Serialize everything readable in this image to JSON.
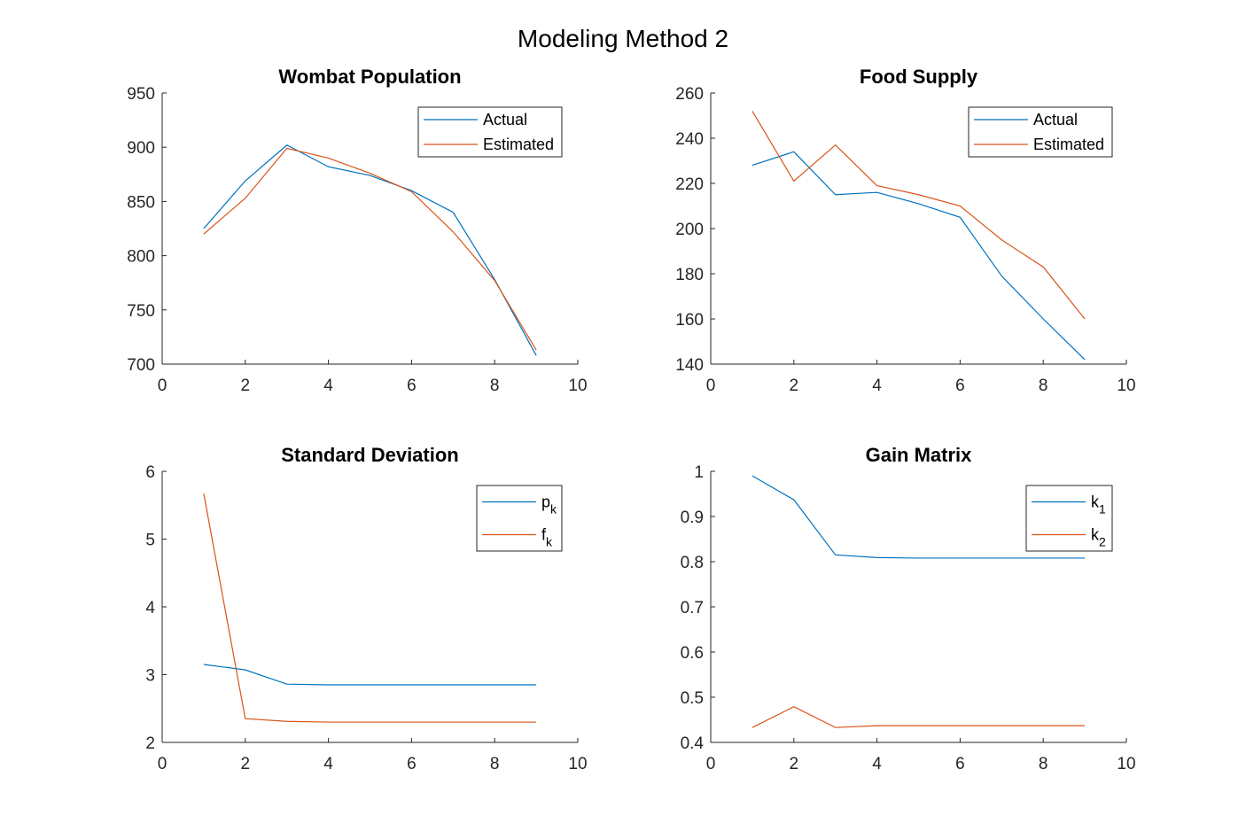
{
  "figure": {
    "title": "Modeling Method 2"
  },
  "colors": {
    "series1": "#0072BD",
    "series2": "#D95319",
    "axis": "#262626"
  },
  "chart_data": [
    {
      "type": "line",
      "title": "Wombat Population",
      "xlim": [
        0,
        10
      ],
      "ylim": [
        700,
        950
      ],
      "xticks": [
        0,
        2,
        4,
        6,
        8,
        10
      ],
      "yticks": [
        700,
        750,
        800,
        850,
        900,
        950
      ],
      "x": [
        1,
        2,
        3,
        4,
        5,
        6,
        7,
        8,
        9
      ],
      "legend_position": "top-right",
      "series": [
        {
          "name": "Actual",
          "values": [
            825,
            869,
            902,
            882,
            874,
            860,
            840,
            778,
            708
          ]
        },
        {
          "name": "Estimated",
          "values": [
            820,
            853,
            899,
            890,
            876,
            859,
            822,
            777,
            713
          ]
        }
      ]
    },
    {
      "type": "line",
      "title": "Food Supply",
      "xlim": [
        0,
        10
      ],
      "ylim": [
        140,
        260
      ],
      "xticks": [
        0,
        2,
        4,
        6,
        8,
        10
      ],
      "yticks": [
        140,
        160,
        180,
        200,
        220,
        240,
        260
      ],
      "x": [
        1,
        2,
        3,
        4,
        5,
        6,
        7,
        8,
        9
      ],
      "legend_position": "top-right",
      "series": [
        {
          "name": "Actual",
          "values": [
            228,
            234,
            215,
            216,
            211,
            205,
            179,
            160,
            142
          ]
        },
        {
          "name": "Estimated",
          "values": [
            252,
            221,
            237,
            219,
            215,
            210,
            195,
            183,
            160
          ]
        }
      ]
    },
    {
      "type": "line",
      "title": "Standard Deviation",
      "xlim": [
        0,
        10
      ],
      "ylim": [
        2,
        6
      ],
      "xticks": [
        0,
        2,
        4,
        6,
        8,
        10
      ],
      "yticks": [
        2,
        3,
        4,
        5,
        6
      ],
      "x": [
        1,
        2,
        3,
        4,
        5,
        6,
        7,
        8,
        9
      ],
      "legend_position": "top-right",
      "series": [
        {
          "name": "p",
          "sub": "k",
          "values": [
            3.15,
            3.07,
            2.86,
            2.85,
            2.85,
            2.85,
            2.85,
            2.85,
            2.85
          ]
        },
        {
          "name": "f",
          "sub": "k",
          "values": [
            5.67,
            2.35,
            2.31,
            2.3,
            2.3,
            2.3,
            2.3,
            2.3,
            2.3
          ]
        }
      ]
    },
    {
      "type": "line",
      "title": "Gain Matrix",
      "xlim": [
        0,
        10
      ],
      "ylim": [
        0.4,
        1
      ],
      "xticks": [
        0,
        2,
        4,
        6,
        8,
        10
      ],
      "yticks": [
        0.4,
        0.5,
        0.6,
        0.7,
        0.8,
        0.9,
        1
      ],
      "x": [
        1,
        2,
        3,
        4,
        5,
        6,
        7,
        8,
        9
      ],
      "legend_position": "top-right",
      "series": [
        {
          "name": "k",
          "sub": "1",
          "values": [
            0.99,
            0.937,
            0.815,
            0.809,
            0.808,
            0.808,
            0.808,
            0.808,
            0.808
          ]
        },
        {
          "name": "k",
          "sub": "2",
          "values": [
            0.433,
            0.479,
            0.433,
            0.437,
            0.437,
            0.437,
            0.437,
            0.437,
            0.437
          ]
        }
      ]
    }
  ]
}
